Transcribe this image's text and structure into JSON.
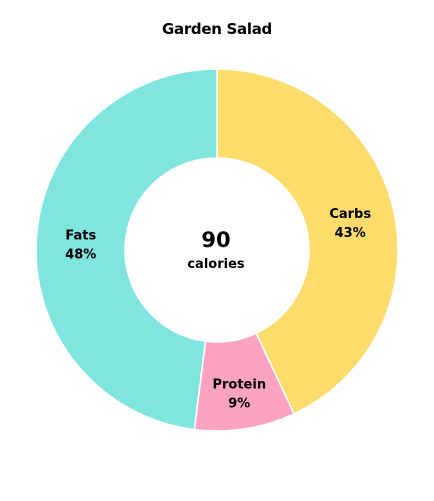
{
  "chart_data": {
    "type": "pie",
    "variant": "donut",
    "title": "Garden Salad",
    "center_value": "90",
    "center_label": "calories",
    "slices": [
      {
        "name": "Carbs",
        "value": 43,
        "label": "43%",
        "color": "#fddc6c"
      },
      {
        "name": "Protein",
        "value": 9,
        "label": "9%",
        "color": "#fca3c4"
      },
      {
        "name": "Fats",
        "value": 48,
        "label": "48%",
        "color": "#80e5df"
      }
    ],
    "start_angle": "12 o'clock",
    "direction": "clockwise",
    "slice_border_color": "#ffffff",
    "legend": "none"
  }
}
